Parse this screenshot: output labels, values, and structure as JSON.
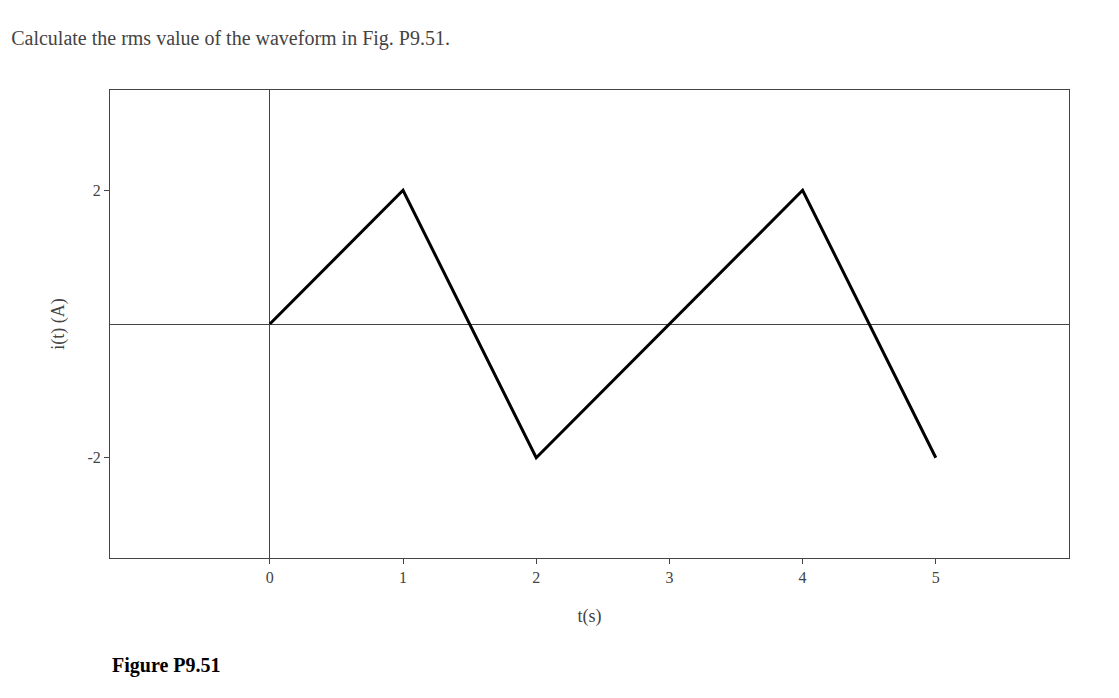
{
  "chart_data": {
    "type": "line",
    "title": "Calculate the rms value of the waveform in Fig. P9.51.",
    "x_label": "t(s)",
    "y_label": "i(t) (A)",
    "x": [
      0,
      1,
      2,
      4,
      5
    ],
    "values": [
      0,
      2,
      -2,
      2,
      -2
    ],
    "color": "#000000",
    "xlim": [
      -1.2,
      6.0
    ],
    "ylim": [
      -3.5,
      3.5
    ],
    "xticks": [
      0,
      1,
      2,
      3,
      4,
      5
    ],
    "yticks": [
      -2,
      2
    ],
    "grid": false,
    "annotations": [
      "Figure P9.51"
    ]
  }
}
